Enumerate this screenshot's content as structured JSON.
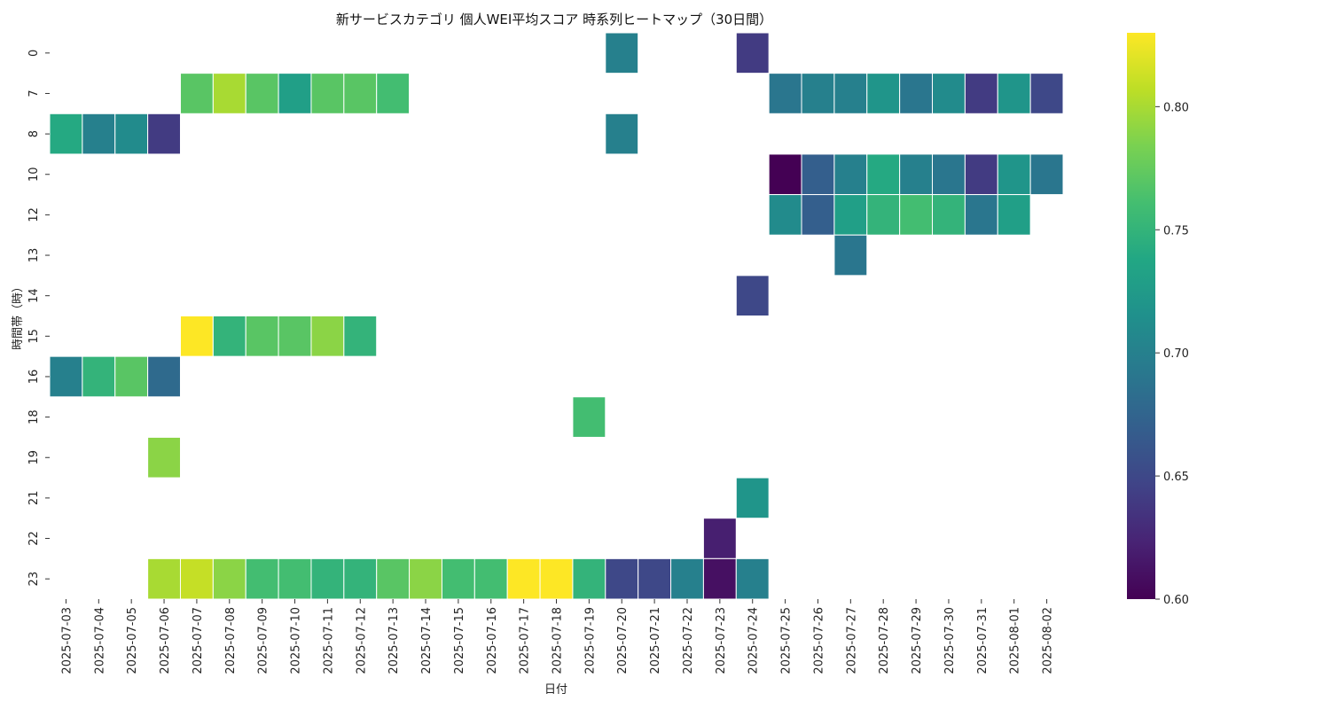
{
  "chart_data": {
    "type": "heatmap",
    "title": "新サービスカテゴリ 個人WEI平均スコア 時系列ヒートマップ（30日間）",
    "xlabel": "日付",
    "ylabel": "時間帯（時）",
    "colormap": "viridis",
    "colorbar": {
      "min": 0.6,
      "max": 0.83,
      "ticks": [
        "0.60",
        "0.65",
        "0.70",
        "0.75",
        "0.80"
      ],
      "tick_values": [
        0.6,
        0.65,
        0.7,
        0.75,
        0.8
      ]
    },
    "x_categories": [
      "2025-07-03",
      "2025-07-04",
      "2025-07-05",
      "2025-07-06",
      "2025-07-07",
      "2025-07-08",
      "2025-07-09",
      "2025-07-10",
      "2025-07-11",
      "2025-07-12",
      "2025-07-13",
      "2025-07-14",
      "2025-07-15",
      "2025-07-16",
      "2025-07-17",
      "2025-07-18",
      "2025-07-19",
      "2025-07-20",
      "2025-07-21",
      "2025-07-22",
      "2025-07-23",
      "2025-07-24",
      "2025-07-25",
      "2025-07-26",
      "2025-07-27",
      "2025-07-28",
      "2025-07-29",
      "2025-07-30",
      "2025-07-31",
      "2025-08-01",
      "2025-08-02"
    ],
    "y_categories": [
      "0",
      "7",
      "8",
      "10",
      "12",
      "13",
      "14",
      "15",
      "16",
      "18",
      "19",
      "21",
      "22",
      "23"
    ],
    "values": [
      [
        null,
        null,
        null,
        null,
        null,
        null,
        null,
        null,
        null,
        null,
        null,
        null,
        null,
        null,
        null,
        null,
        null,
        0.7,
        null,
        null,
        null,
        0.64,
        null,
        null,
        null,
        null,
        null,
        null,
        null,
        null,
        null
      ],
      [
        null,
        null,
        null,
        null,
        0.77,
        0.8,
        0.77,
        0.73,
        0.77,
        0.77,
        0.76,
        null,
        null,
        null,
        null,
        null,
        null,
        null,
        null,
        null,
        null,
        null,
        0.69,
        0.7,
        0.7,
        0.72,
        0.69,
        0.71,
        0.64,
        0.72,
        0.65
      ],
      [
        0.74,
        0.7,
        0.71,
        0.64,
        null,
        null,
        null,
        null,
        null,
        null,
        null,
        null,
        null,
        null,
        null,
        null,
        null,
        0.7,
        null,
        null,
        null,
        null,
        null,
        null,
        null,
        null,
        null,
        null,
        null,
        null,
        null
      ],
      [
        null,
        null,
        null,
        null,
        null,
        null,
        null,
        null,
        null,
        null,
        null,
        null,
        null,
        null,
        null,
        null,
        null,
        null,
        null,
        null,
        null,
        null,
        0.6,
        0.67,
        0.7,
        0.74,
        0.7,
        0.69,
        0.64,
        0.72,
        0.69
      ],
      [
        null,
        null,
        null,
        null,
        null,
        null,
        null,
        null,
        null,
        null,
        null,
        null,
        null,
        null,
        null,
        null,
        null,
        null,
        null,
        null,
        null,
        null,
        0.71,
        0.67,
        0.73,
        0.75,
        0.76,
        0.75,
        0.69,
        0.73,
        null
      ],
      [
        null,
        null,
        null,
        null,
        null,
        null,
        null,
        null,
        null,
        null,
        null,
        null,
        null,
        null,
        null,
        null,
        null,
        null,
        null,
        null,
        null,
        null,
        null,
        null,
        0.69,
        null,
        null,
        null,
        null,
        null,
        null
      ],
      [
        null,
        null,
        null,
        null,
        null,
        null,
        null,
        null,
        null,
        null,
        null,
        null,
        null,
        null,
        null,
        null,
        null,
        null,
        null,
        null,
        null,
        0.65,
        null,
        null,
        null,
        null,
        null,
        null,
        null,
        null,
        null
      ],
      [
        null,
        null,
        null,
        null,
        0.83,
        0.75,
        0.77,
        0.77,
        0.79,
        0.75,
        null,
        null,
        null,
        null,
        null,
        null,
        null,
        null,
        null,
        null,
        null,
        null,
        null,
        null,
        null,
        null,
        null,
        null,
        null,
        null,
        null
      ],
      [
        0.7,
        0.75,
        0.77,
        0.68,
        null,
        null,
        null,
        null,
        null,
        null,
        null,
        null,
        null,
        null,
        null,
        null,
        null,
        null,
        null,
        null,
        null,
        null,
        null,
        null,
        null,
        null,
        null,
        null,
        null,
        null,
        null
      ],
      [
        null,
        null,
        null,
        null,
        null,
        null,
        null,
        null,
        null,
        null,
        null,
        null,
        null,
        null,
        null,
        null,
        0.76,
        null,
        null,
        null,
        null,
        null,
        null,
        null,
        null,
        null,
        null,
        null,
        null,
        null,
        null
      ],
      [
        null,
        null,
        null,
        0.79,
        null,
        null,
        null,
        null,
        null,
        null,
        null,
        null,
        null,
        null,
        null,
        null,
        null,
        null,
        null,
        null,
        null,
        null,
        null,
        null,
        null,
        null,
        null,
        null,
        null,
        null,
        null
      ],
      [
        null,
        null,
        null,
        null,
        null,
        null,
        null,
        null,
        null,
        null,
        null,
        null,
        null,
        null,
        null,
        null,
        null,
        null,
        null,
        null,
        null,
        0.72,
        null,
        null,
        null,
        null,
        null,
        null,
        null,
        null,
        null
      ],
      [
        null,
        null,
        null,
        null,
        null,
        null,
        null,
        null,
        null,
        null,
        null,
        null,
        null,
        null,
        null,
        null,
        null,
        null,
        null,
        null,
        0.62,
        null,
        null,
        null,
        null,
        null,
        null,
        null,
        null,
        null,
        null
      ],
      [
        null,
        null,
        null,
        0.8,
        0.81,
        0.79,
        0.76,
        0.76,
        0.75,
        0.75,
        0.77,
        0.79,
        0.76,
        0.76,
        0.83,
        0.83,
        0.75,
        0.65,
        0.65,
        0.7,
        0.61,
        0.7,
        null,
        null,
        null,
        null,
        null,
        null,
        null,
        null,
        null
      ]
    ]
  }
}
